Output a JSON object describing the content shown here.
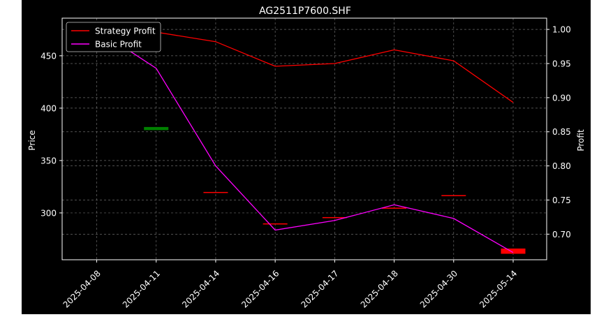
{
  "chart_data": {
    "type": "line",
    "title": "AG2511P7600.SHF",
    "xlabel": "",
    "ylabel": "Price",
    "y2label": "Profit",
    "categories": [
      "2025-04-08",
      "2025-04-11",
      "2025-04-14",
      "2025-04-16",
      "2025-04-17",
      "2025-04-18",
      "2025-04-30",
      "2025-05-14"
    ],
    "ylim": [
      255.3,
      485.9
    ],
    "y2lim": [
      0.6625,
      1.0165
    ],
    "yticks": [
      300,
      350,
      400,
      450
    ],
    "y2ticks": [
      0.7,
      0.75,
      0.8,
      0.85,
      0.9,
      0.95,
      1.0
    ],
    "grid": true,
    "legend_position": "top-left",
    "series": [
      {
        "name": "Strategy Profit",
        "axis": "right",
        "color": "#ff0000",
        "values": [
          1.0,
          0.996,
          0.982,
          0.946,
          0.95,
          0.97,
          0.954,
          0.893
        ]
      },
      {
        "name": "Basic Profit",
        "axis": "right",
        "color": "#ff00ff",
        "values": [
          1.0,
          0.943,
          0.8,
          0.706,
          0.72,
          0.743,
          0.723,
          0.673
        ]
      }
    ],
    "candles": [
      {
        "x": "2025-04-11",
        "open": 382,
        "close": 379,
        "color": "#008000"
      },
      {
        "x": "2025-04-14",
        "open": 320,
        "close": 319,
        "color": "#ff0000"
      },
      {
        "x": "2025-04-16",
        "open": 290,
        "close": 289,
        "color": "#ff0000"
      },
      {
        "x": "2025-04-17",
        "open": 296,
        "close": 295,
        "color": "#ff0000"
      },
      {
        "x": "2025-04-18",
        "open": 305,
        "close": 304,
        "color": "#ff0000"
      },
      {
        "x": "2025-04-30",
        "open": 317,
        "close": 316,
        "color": "#ff0000"
      },
      {
        "x": "2025-05-14",
        "open": 266,
        "close": 261,
        "color": "#ff0000"
      }
    ]
  }
}
